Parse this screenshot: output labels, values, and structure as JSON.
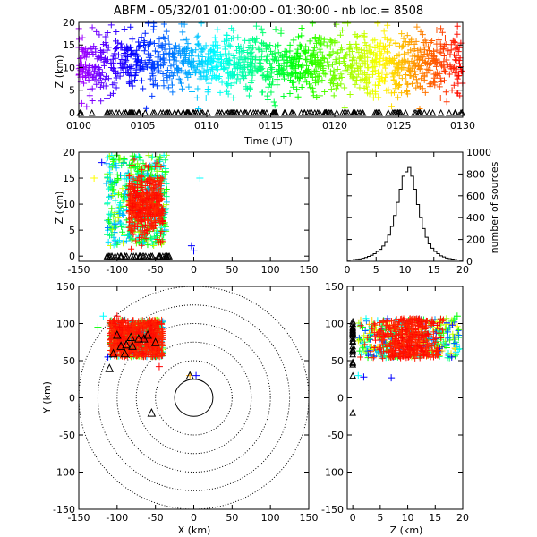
{
  "figure": {
    "title": "ABFM - 05/32/01  01:00:00 - 01:30:00 - nb loc.=    8508"
  },
  "chart_data": [
    {
      "id": "time-height",
      "type": "scatter",
      "xlabel": "Time (UT)",
      "ylabel": "Z (km)",
      "xlim": [
        0,
        30
      ],
      "ylim": [
        -1,
        20
      ],
      "x_ticks": [
        0,
        5,
        10,
        15,
        20,
        25,
        30
      ],
      "x_tick_labels": [
        "0100",
        "0105",
        "0110",
        "0115",
        "0120",
        "0125",
        "0130"
      ],
      "y_ticks": [
        0,
        5,
        10,
        15,
        20
      ],
      "y_tick_labels": [
        "0",
        "5",
        "10",
        "15",
        "20"
      ],
      "color_encoding": "time (purple at 01:00 to red at 01:30)",
      "z_center_km": 11,
      "z_spread_km": 3.5,
      "ground_triangles_z_km": 0
    },
    {
      "id": "x-height",
      "type": "scatter",
      "xlabel": "",
      "ylabel": "Z (km)",
      "xlim": [
        -150,
        150
      ],
      "ylim": [
        -1,
        20
      ],
      "x_ticks": [
        -150,
        -100,
        -50,
        0,
        50,
        100,
        150
      ],
      "x_tick_labels": [
        "-150",
        "-100",
        "-50",
        "0",
        "50",
        "100",
        "150"
      ],
      "y_ticks": [
        0,
        5,
        10,
        15,
        20
      ],
      "y_tick_labels": [
        "0",
        "5",
        "10",
        "15",
        "20"
      ],
      "cluster_x_km": [
        -115,
        -35
      ],
      "dense_core_x_km": [
        -85,
        -40
      ]
    },
    {
      "id": "height-histogram",
      "type": "line",
      "xlabel": "",
      "ylabel": "number of sources",
      "xlim": [
        0,
        20
      ],
      "ylim": [
        0,
        1000
      ],
      "x_ticks": [
        0,
        5,
        10,
        15,
        20
      ],
      "x_tick_labels": [
        "0",
        "5",
        "10",
        "15",
        "20"
      ],
      "y_ticks": [
        0,
        200,
        400,
        600,
        800,
        1000
      ],
      "y_tick_labels": [
        "0",
        "200",
        "400",
        "600",
        "800",
        "1000"
      ],
      "x": [
        0.0,
        0.5,
        1.0,
        1.5,
        2.0,
        2.5,
        3.0,
        3.5,
        4.0,
        4.5,
        5.0,
        5.5,
        6.0,
        6.5,
        7.0,
        7.5,
        8.0,
        8.5,
        9.0,
        9.5,
        10.0,
        10.5,
        11.0,
        11.5,
        12.0,
        12.5,
        13.0,
        13.5,
        14.0,
        14.5,
        15.0,
        15.5,
        16.0,
        16.5,
        17.0,
        17.5,
        18.0,
        18.5,
        19.0,
        19.5
      ],
      "values": [
        10,
        12,
        15,
        18,
        22,
        28,
        35,
        45,
        55,
        70,
        90,
        110,
        140,
        180,
        240,
        320,
        420,
        540,
        660,
        780,
        820,
        860,
        780,
        660,
        520,
        400,
        300,
        220,
        160,
        120,
        90,
        70,
        50,
        40,
        30,
        25,
        20,
        15,
        12,
        10
      ]
    },
    {
      "id": "plan-view",
      "type": "scatter",
      "xlabel": "X (km)",
      "ylabel": "Y (km)",
      "xlim": [
        -150,
        150
      ],
      "ylim": [
        -150,
        150
      ],
      "x_ticks": [
        -150,
        -100,
        -50,
        0,
        50,
        100,
        150
      ],
      "x_tick_labels": [
        "-150",
        "-100",
        "-50",
        "0",
        "50",
        "100",
        "150"
      ],
      "y_ticks": [
        -150,
        -100,
        -50,
        0,
        50,
        100,
        150
      ],
      "y_tick_labels": [
        "-150",
        "-100",
        "-50",
        "0",
        "50",
        "100",
        "150"
      ],
      "range_ring_radii_km": [
        25,
        50,
        75,
        100,
        125,
        150
      ],
      "cluster_x_km": [
        -110,
        -40
      ],
      "cluster_y_km": [
        45,
        115
      ],
      "stations_xy_km": [
        [
          -55,
          -20
        ],
        [
          -88,
          72
        ],
        [
          -82,
          82
        ],
        [
          -72,
          80
        ],
        [
          -95,
          70
        ],
        [
          -100,
          85
        ],
        [
          -65,
          80
        ],
        [
          -90,
          60
        ],
        [
          -80,
          70
        ],
        [
          -105,
          60
        ],
        [
          -50,
          75
        ],
        [
          -60,
          85
        ],
        [
          -110,
          40
        ],
        [
          -5,
          30
        ]
      ]
    },
    {
      "id": "z-y",
      "type": "scatter",
      "xlabel": "Z (km)",
      "ylabel": "",
      "xlim": [
        -1,
        20
      ],
      "ylim": [
        -150,
        150
      ],
      "x_ticks": [
        0,
        5,
        10,
        15,
        20
      ],
      "x_tick_labels": [
        "0",
        "5",
        "10",
        "15",
        "20"
      ],
      "y_ticks": [
        -150,
        -100,
        -50,
        0,
        50,
        100,
        150
      ],
      "y_tick_labels": [
        "-150",
        "-100",
        "-50",
        "0",
        "50",
        "100",
        "150"
      ],
      "cluster_y_km": [
        45,
        115
      ]
    }
  ]
}
